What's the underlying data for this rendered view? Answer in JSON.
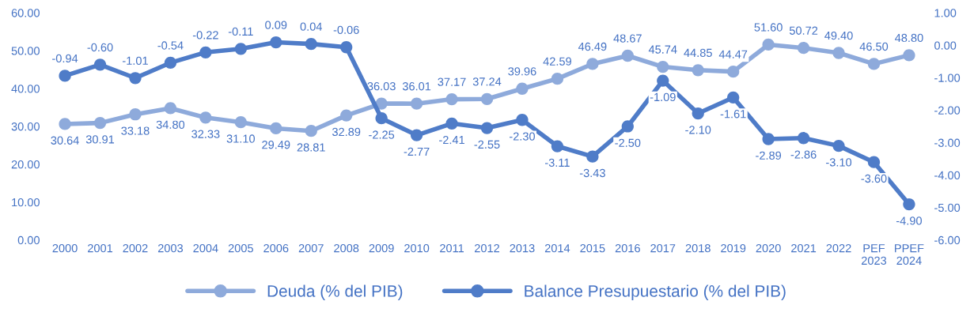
{
  "chart_data": {
    "type": "line",
    "categories": [
      "2000",
      "2001",
      "2002",
      "2003",
      "2004",
      "2005",
      "2006",
      "2007",
      "2008",
      "2009",
      "2010",
      "2011",
      "2012",
      "2013",
      "2014",
      "2015",
      "2016",
      "2017",
      "2018",
      "2019",
      "2020",
      "2021",
      "2022",
      "PEF\n2023",
      "PPEF\n2024"
    ],
    "series": [
      {
        "name": "Deuda (% del PIB)",
        "color": "#8eaadb",
        "values": [
          30.64,
          30.91,
          33.18,
          34.8,
          32.33,
          31.1,
          29.49,
          28.81,
          32.89,
          36.03,
          36.01,
          37.17,
          37.24,
          39.96,
          42.59,
          46.49,
          48.67,
          45.74,
          44.85,
          44.47,
          51.6,
          50.72,
          49.4,
          46.5,
          48.8
        ],
        "value_labels": [
          "30.64",
          "30.91",
          "33.18",
          "34.80",
          "32.33",
          "31.10",
          "29.49",
          "28.81",
          "32.89",
          "36.03",
          "36.01",
          "37.17",
          "37.24",
          "39.96",
          "42.59",
          "46.49",
          "48.67",
          "45.74",
          "44.85",
          "44.47",
          "51.60",
          "50.72",
          "49.40",
          "46.50",
          "48.80"
        ]
      },
      {
        "name": "Balance Presupuestario (% del PIB)",
        "color": "#4f7cc8",
        "axis": "y2",
        "values": [
          -0.94,
          -0.6,
          -1.01,
          -0.54,
          -0.22,
          -0.11,
          0.09,
          0.04,
          -0.06,
          -2.25,
          -2.77,
          -2.41,
          -2.55,
          -2.3,
          -3.11,
          -3.43,
          -2.5,
          -1.09,
          -2.1,
          -1.61,
          -2.89,
          -2.86,
          -3.1,
          -3.6,
          -4.9
        ],
        "value_labels": [
          "-0.94",
          "-0.60",
          "-1.01",
          "-0.54",
          "-0.22",
          "-0.11",
          "0.09",
          "0.04",
          "-0.06",
          "-2.25",
          "-2.77",
          "-2.41",
          "-2.55",
          "-2.30",
          "-3.11",
          "-3.43",
          "-2.50",
          "-1.09",
          "-2.10",
          "-1.61",
          "-2.89",
          "-2.86",
          "-3.10",
          "-3.60",
          "-4.90"
        ]
      }
    ],
    "ylim": [
      0,
      60
    ],
    "yticks": [
      {
        "value": 0,
        "label": "0.00"
      },
      {
        "value": 10,
        "label": "10.00"
      },
      {
        "value": 20,
        "label": "20.00"
      },
      {
        "value": 30,
        "label": "30.00"
      },
      {
        "value": 40,
        "label": "40.00"
      },
      {
        "value": 50,
        "label": "50.00"
      },
      {
        "value": 60,
        "label": "60.00"
      }
    ],
    "y2lim": [
      -6,
      1
    ],
    "y2ticks": [
      {
        "value": -6,
        "label": "-6.00"
      },
      {
        "value": -5,
        "label": "-5.00"
      },
      {
        "value": -4,
        "label": "-4.00"
      },
      {
        "value": -3,
        "label": "-3.00"
      },
      {
        "value": -2,
        "label": "-2.00"
      },
      {
        "value": -1,
        "label": "-1.00"
      },
      {
        "value": 0,
        "label": "0.00"
      },
      {
        "value": 1,
        "label": "1.00"
      }
    ],
    "grid": false,
    "legend": "bottom",
    "marker": "circle",
    "line_style": "solid"
  }
}
